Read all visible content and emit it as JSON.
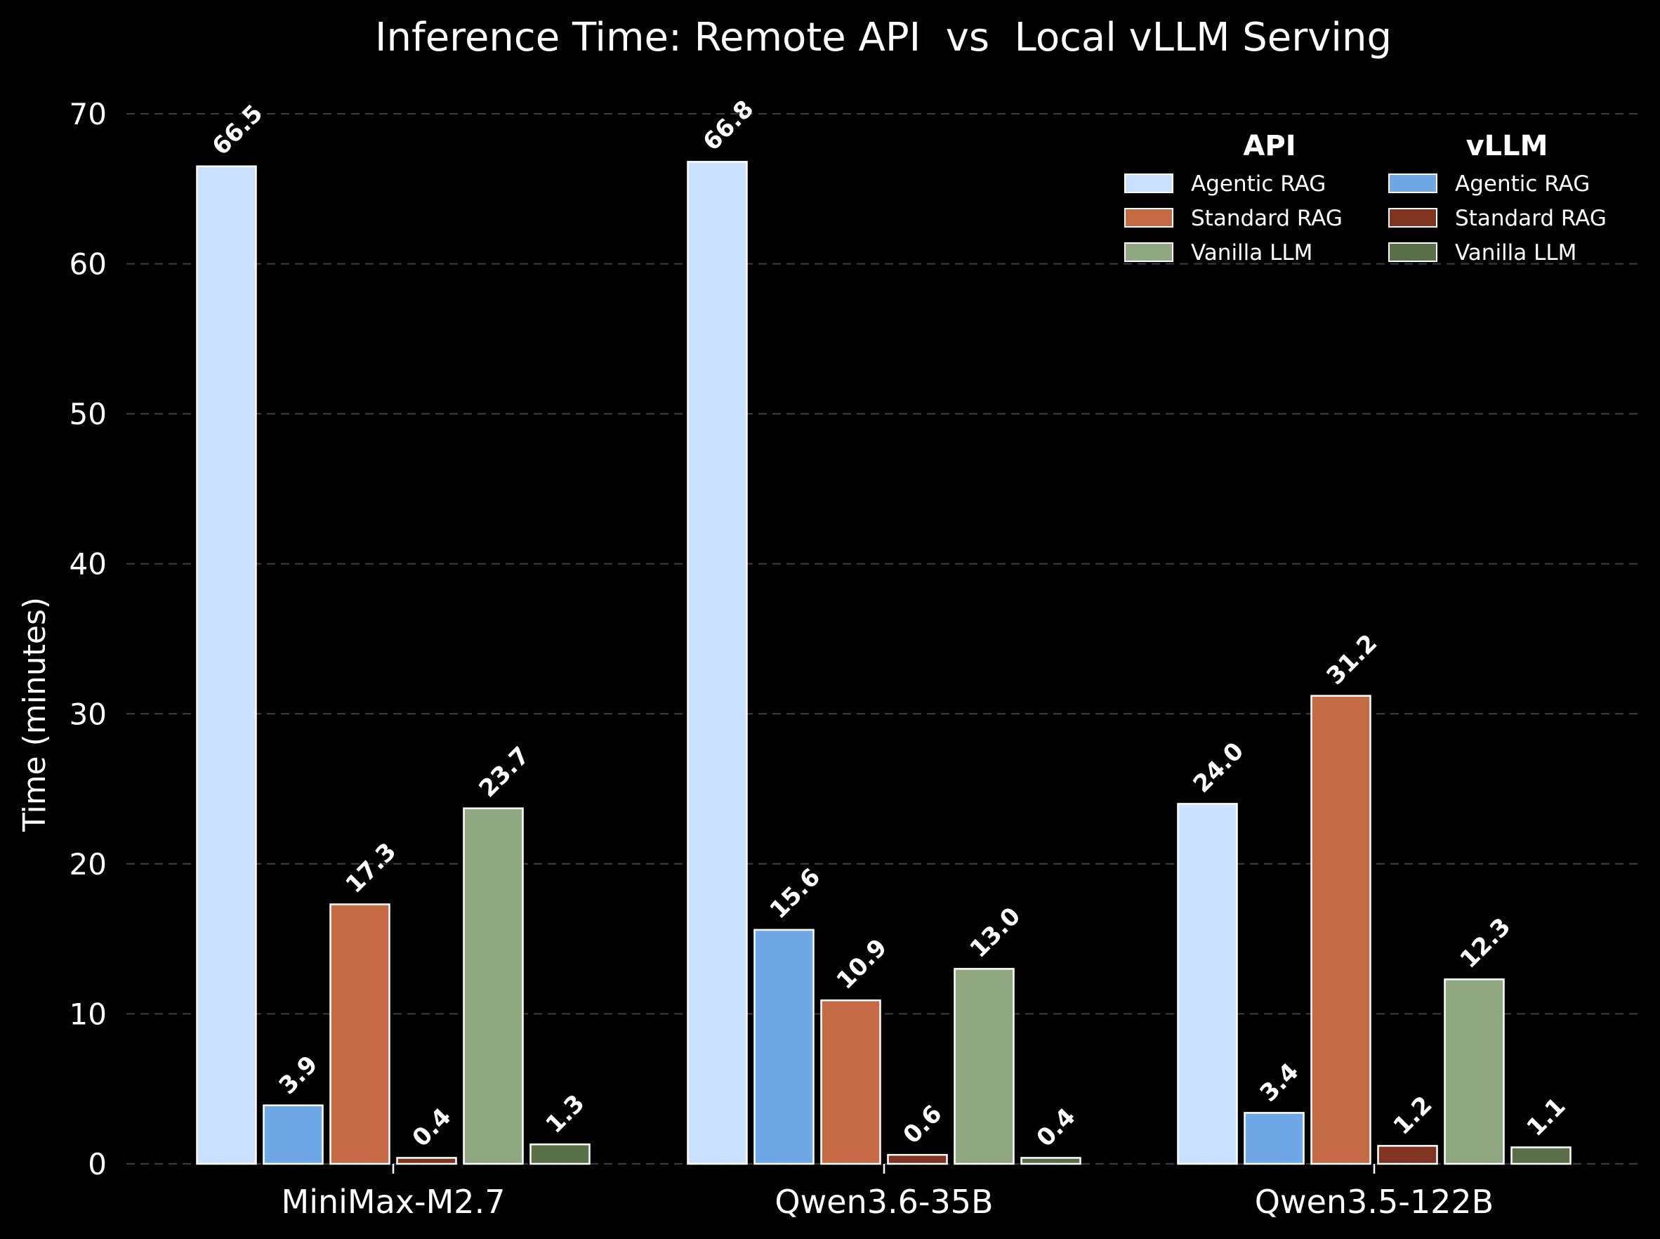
{
  "chart_data": {
    "type": "bar",
    "title": "Inference Time: Remote API  vs  Local vLLM Serving",
    "xlabel": "",
    "ylabel": "Time (minutes)",
    "ylim": [
      0,
      70
    ],
    "yticks": [
      0,
      10,
      20,
      30,
      40,
      50,
      60,
      70
    ],
    "grid": true,
    "legend_position": "top-right",
    "categories": [
      "MiniMax-M2.7",
      "Qwen3.6-35B",
      "Qwen3.5-122B"
    ],
    "legend_groups": [
      {
        "title": "API",
        "entries": [
          "Agentic RAG",
          "Standard RAG",
          "Vanilla LLM"
        ]
      },
      {
        "title": "vLLM",
        "entries": [
          "Agentic RAG",
          "Standard RAG",
          "Vanilla LLM"
        ]
      }
    ],
    "series": [
      {
        "name": "Agentic RAG",
        "group": "API",
        "color": "#c9e0ff",
        "values": [
          66.5,
          66.8,
          24.0
        ]
      },
      {
        "name": "Agentic RAG",
        "group": "vLLM",
        "color": "#6fa8e6",
        "values": [
          3.9,
          15.6,
          3.4
        ]
      },
      {
        "name": "Standard RAG",
        "group": "API",
        "color": "#c46a45",
        "values": [
          17.3,
          10.9,
          31.2
        ]
      },
      {
        "name": "Standard RAG",
        "group": "vLLM",
        "color": "#7f3520",
        "values": [
          0.4,
          0.6,
          1.2
        ]
      },
      {
        "name": "Vanilla LLM",
        "group": "API",
        "color": "#8fa882",
        "values": [
          23.7,
          13.0,
          12.3
        ]
      },
      {
        "name": "Vanilla LLM",
        "group": "vLLM",
        "color": "#5a7049",
        "values": [
          1.3,
          0.4,
          1.1
        ]
      }
    ]
  }
}
